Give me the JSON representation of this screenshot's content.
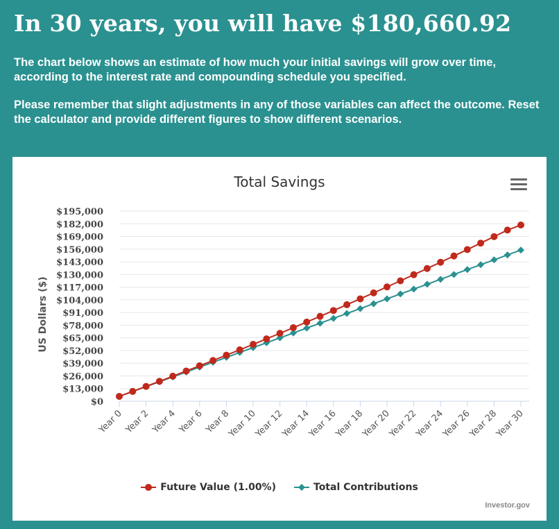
{
  "header": {
    "headline": "In 30 years, you will have $180,660.92",
    "paragraph_1": "The chart below shows an estimate of how much your initial savings will grow over time, according to the interest rate and compounding schedule you specified.",
    "paragraph_2": "Please remember that slight adjustments in any of those variables can affect the outcome. Reset the calculator and provide different figures to show different scenarios."
  },
  "colors": {
    "background": "#2a9190",
    "future_value": "#c0291b",
    "contributions": "#2a9190"
  },
  "menu_icon": "hamburger-menu-icon",
  "credits": "Investor.gov",
  "chart_data": {
    "type": "line",
    "title": "Total Savings",
    "ylabel": "US Dollars ($)",
    "xlabel": "",
    "ylim": [
      0,
      195000
    ],
    "y_ticks": [
      "$0",
      "$13,000",
      "$26,000",
      "$39,000",
      "$52,000",
      "$65,000",
      "$78,000",
      "$91,000",
      "$104,000",
      "$117,000",
      "$130,000",
      "$143,000",
      "$156,000",
      "$169,000",
      "$182,000",
      "$195,000"
    ],
    "x_tick_labels": [
      "Year 0",
      "Year 2",
      "Year 4",
      "Year 6",
      "Year 8",
      "Year 10",
      "Year 12",
      "Year 14",
      "Year 16",
      "Year 18",
      "Year 20",
      "Year 22",
      "Year 24",
      "Year 26",
      "Year 28",
      "Year 30"
    ],
    "categories": [
      "Year 0",
      "Year 1",
      "Year 2",
      "Year 3",
      "Year 4",
      "Year 5",
      "Year 6",
      "Year 7",
      "Year 8",
      "Year 9",
      "Year 10",
      "Year 11",
      "Year 12",
      "Year 13",
      "Year 14",
      "Year 15",
      "Year 16",
      "Year 17",
      "Year 18",
      "Year 19",
      "Year 20",
      "Year 21",
      "Year 22",
      "Year 23",
      "Year 24",
      "Year 25",
      "Year 26",
      "Year 27",
      "Year 28",
      "Year 29",
      "Year 30"
    ],
    "grid": true,
    "legend_position": "bottom-center",
    "series": [
      {
        "name": "Future Value (1.00%)",
        "color": "#c0291b",
        "marker": "circle",
        "values": [
          5000,
          10100,
          15250,
          20450,
          25700,
          31000,
          36360,
          41770,
          47240,
          52760,
          58340,
          63970,
          69660,
          75410,
          81210,
          87070,
          92990,
          98970,
          105000,
          111100,
          117260,
          123480,
          129760,
          136110,
          142510,
          148980,
          155520,
          162120,
          168780,
          175520,
          180660
        ]
      },
      {
        "name": "Total Contributions",
        "color": "#2a9190",
        "marker": "diamond",
        "values": [
          5000,
          10000,
          15000,
          20000,
          25000,
          30000,
          35000,
          40000,
          45000,
          50000,
          55000,
          60000,
          65000,
          70000,
          75000,
          80000,
          85000,
          90000,
          95000,
          100000,
          105000,
          110000,
          115000,
          120000,
          125000,
          130000,
          135000,
          140000,
          145000,
          150000,
          155000
        ]
      }
    ]
  }
}
